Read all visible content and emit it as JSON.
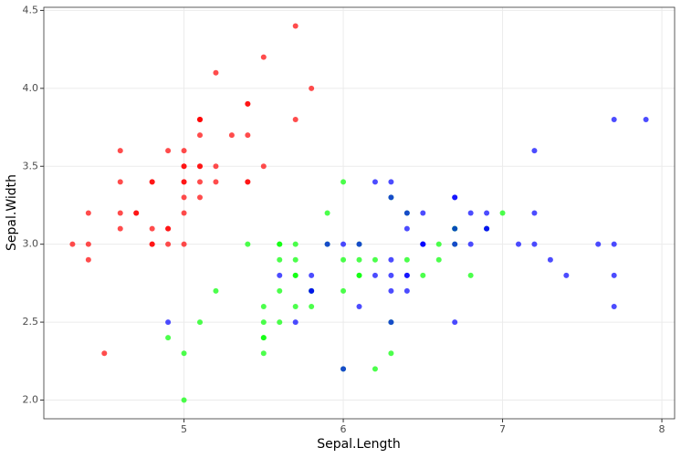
{
  "chart_data": {
    "type": "scatter",
    "x_label": "Sepal.Length",
    "y_label": "Sepal.Width",
    "xlim": [
      4.12,
      8.08
    ],
    "ylim": [
      1.88,
      4.52
    ],
    "xticks": [
      5,
      6,
      7,
      8
    ],
    "yticks": [
      {
        "value": 2.0,
        "label": "2.0"
      },
      {
        "value": 2.5,
        "label": "2.5"
      },
      {
        "value": 3.0,
        "label": "3.0"
      },
      {
        "value": 3.5,
        "label": "3.5"
      },
      {
        "value": 4.0,
        "label": "4.0"
      },
      {
        "value": 4.5,
        "label": "4.5"
      }
    ],
    "grid": true,
    "opacity": 0.7,
    "series": [
      {
        "color": "#ff0000",
        "x": [
          5.1,
          4.9,
          4.7,
          4.6,
          5.0,
          5.4,
          4.6,
          5.0,
          4.4,
          4.9,
          5.4,
          4.8,
          4.8,
          4.3,
          5.8,
          5.7,
          5.4,
          5.1,
          5.7,
          5.1,
          5.4,
          5.1,
          4.6,
          5.1,
          4.8,
          5.0,
          5.0,
          5.2,
          5.2,
          4.7,
          4.8,
          5.4,
          5.2,
          5.5,
          4.9,
          5.0,
          5.5,
          4.9,
          4.4,
          5.1,
          5.0,
          4.5,
          4.4,
          5.0,
          5.1,
          4.8,
          5.1,
          4.6,
          5.3,
          5.0
        ],
        "values": [
          3.5,
          3.0,
          3.2,
          3.1,
          3.6,
          3.9,
          3.4,
          3.4,
          2.9,
          3.1,
          3.7,
          3.4,
          3.0,
          3.0,
          4.0,
          4.4,
          3.9,
          3.5,
          3.8,
          3.8,
          3.4,
          3.7,
          3.6,
          3.3,
          3.4,
          3.0,
          3.4,
          3.5,
          3.4,
          3.2,
          3.1,
          3.4,
          4.1,
          4.2,
          3.1,
          3.2,
          3.5,
          3.6,
          3.0,
          3.4,
          3.5,
          2.3,
          3.2,
          3.5,
          3.8,
          3.0,
          3.8,
          3.2,
          3.7,
          3.3
        ]
      },
      {
        "color": "#00ff00",
        "x": [
          7.0,
          6.4,
          6.9,
          5.5,
          6.5,
          5.7,
          6.3,
          4.9,
          6.6,
          5.2,
          5.0,
          5.9,
          6.0,
          6.1,
          5.6,
          6.7,
          5.6,
          5.8,
          6.2,
          5.6,
          5.9,
          6.1,
          6.3,
          6.1,
          6.4,
          6.6,
          6.8,
          6.7,
          6.0,
          5.7,
          5.5,
          5.5,
          5.8,
          6.0,
          5.4,
          6.0,
          6.7,
          6.3,
          5.6,
          5.5,
          5.5,
          6.1,
          5.8,
          5.0,
          5.6,
          5.7,
          5.7,
          6.2,
          5.1,
          5.7
        ],
        "values": [
          3.2,
          3.2,
          3.1,
          2.3,
          2.8,
          2.8,
          3.3,
          2.4,
          2.9,
          2.7,
          2.0,
          3.0,
          2.2,
          2.9,
          2.9,
          3.1,
          3.0,
          2.7,
          2.2,
          2.5,
          3.2,
          2.8,
          2.5,
          2.8,
          2.9,
          3.0,
          2.8,
          3.0,
          2.9,
          2.6,
          2.4,
          2.4,
          2.7,
          2.7,
          3.0,
          3.4,
          3.1,
          2.3,
          3.0,
          2.5,
          2.6,
          3.0,
          2.6,
          2.3,
          2.7,
          3.0,
          2.9,
          2.9,
          2.5,
          2.8
        ]
      },
      {
        "color": "#0000ff",
        "x": [
          6.3,
          5.8,
          7.1,
          6.3,
          6.5,
          7.6,
          4.9,
          7.3,
          6.7,
          7.2,
          6.5,
          6.4,
          6.8,
          5.7,
          5.8,
          6.4,
          6.5,
          7.7,
          7.7,
          6.0,
          6.9,
          5.6,
          7.7,
          6.3,
          6.7,
          7.2,
          6.2,
          6.1,
          6.4,
          7.2,
          7.4,
          7.9,
          6.4,
          6.3,
          6.1,
          7.7,
          6.3,
          6.4,
          6.0,
          6.9,
          6.7,
          6.9,
          5.8,
          6.8,
          6.7,
          6.7,
          6.3,
          6.5,
          6.2,
          5.9
        ],
        "values": [
          3.3,
          2.7,
          3.0,
          2.9,
          3.0,
          3.0,
          2.5,
          2.9,
          2.5,
          3.6,
          3.2,
          2.7,
          3.0,
          2.5,
          2.8,
          3.2,
          3.0,
          3.8,
          2.6,
          2.2,
          3.2,
          2.8,
          2.8,
          2.7,
          3.3,
          3.2,
          2.8,
          3.0,
          2.8,
          3.0,
          2.8,
          3.8,
          2.8,
          2.8,
          2.6,
          3.0,
          3.4,
          3.1,
          3.0,
          3.1,
          3.1,
          3.1,
          2.7,
          3.2,
          3.3,
          3.0,
          2.5,
          3.0,
          3.4,
          3.0
        ]
      }
    ]
  }
}
